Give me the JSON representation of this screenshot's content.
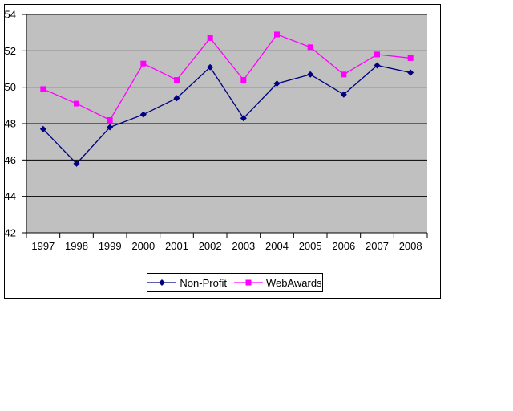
{
  "page": {
    "background_color": "#FFFFFF"
  },
  "chart_data": {
    "type": "line",
    "title": "",
    "xlabel": "",
    "ylabel": "",
    "categories": [
      "1997",
      "1998",
      "1999",
      "2000",
      "2001",
      "2002",
      "2003",
      "2004",
      "2005",
      "2006",
      "2007",
      "2008"
    ],
    "series": [
      {
        "name": "Non-Profit",
        "color": "#000080",
        "marker": "diamond",
        "values": [
          47.7,
          45.8,
          47.8,
          48.5,
          49.4,
          51.1,
          48.3,
          50.2,
          50.7,
          49.6,
          51.2,
          50.8
        ]
      },
      {
        "name": "WebAwards",
        "color": "#FF00FF",
        "marker": "square",
        "values": [
          49.9,
          49.1,
          48.2,
          51.3,
          50.4,
          52.7,
          50.4,
          52.9,
          52.2,
          50.7,
          51.8,
          51.6
        ]
      }
    ],
    "ylim": [
      42,
      54
    ],
    "ytick_step": 2,
    "ytick_labels": [
      "42",
      "44",
      "46",
      "48",
      "50",
      "52",
      "54"
    ],
    "grid": true,
    "gridline_color": "#000000",
    "plot_background": "#C0C0C0",
    "axis_color": "#000000",
    "legend_position": "bottom",
    "legend_border_color": "#000000"
  }
}
